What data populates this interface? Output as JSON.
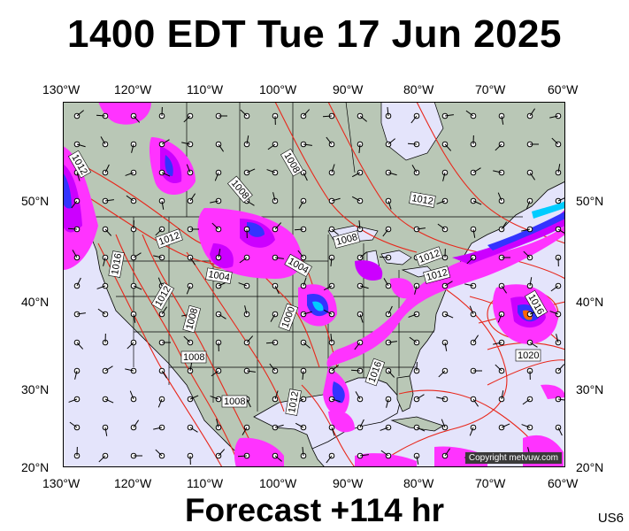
{
  "title": "1400 EDT Tue 17 Jun 2025",
  "footer": "Forecast +114 hr",
  "region_code": "US6",
  "copyright": "Copyright metvuw.com",
  "lon_labels": [
    "130°W",
    "120°W",
    "110°W",
    "100°W",
    "90°W",
    "80°W",
    "70°W",
    "60°W"
  ],
  "lat_labels": [
    "50°N",
    "40°N",
    "30°N",
    "20°N"
  ],
  "isobar_labels": [
    "1012",
    "1008",
    "1008",
    "1012",
    "1016",
    "1012",
    "1008",
    "1004",
    "1004",
    "1012",
    "1008",
    "1000",
    "1008",
    "1008",
    "1012",
    "1016",
    "1012",
    "1012",
    "1016",
    "1020"
  ],
  "colors": {
    "ocean": "#e4e4fb",
    "land": "#b9c7b6",
    "isobar": "#e8271b",
    "precip_light": "#ff33ff",
    "precip_mid": "#cc00ff",
    "precip_heavy": "#3333ff",
    "precip_extreme": "#00ccff",
    "borders": "#000000"
  }
}
